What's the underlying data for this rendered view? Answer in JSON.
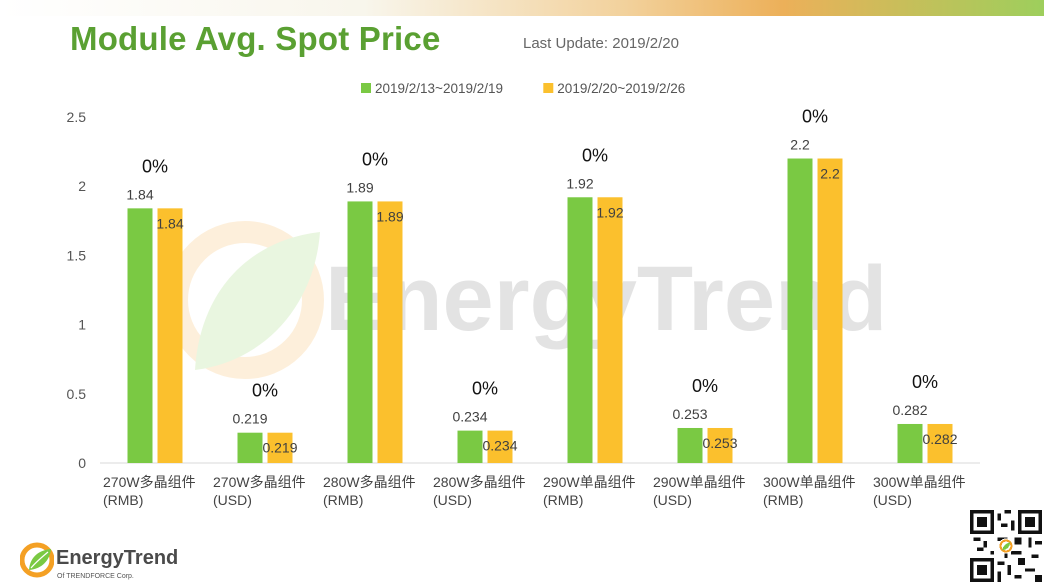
{
  "header": {
    "title": "Module Avg. Spot Price",
    "last_update": "Last Update: 2019/2/20"
  },
  "watermark": {
    "text": "EnergyTrend"
  },
  "footer": {
    "logo_name": "EnergyTrend",
    "logo_sub": "Of TRENDFORCE Corp."
  },
  "colors": {
    "series1": "#7ac943",
    "series2": "#fbc02d",
    "title": "#5aa032"
  },
  "chart_data": {
    "type": "bar",
    "categories": [
      [
        "270W多晶组件",
        "(RMB)"
      ],
      [
        "270W多晶组件",
        "(USD)"
      ],
      [
        "280W多晶组件",
        "(RMB)"
      ],
      [
        "280W多晶组件",
        "(USD)"
      ],
      [
        "290W单晶组件",
        "(RMB)"
      ],
      [
        "290W单晶组件",
        "(USD)"
      ],
      [
        "300W单晶组件",
        "(RMB)"
      ],
      [
        "300W单晶组件",
        "(USD)"
      ]
    ],
    "series": [
      {
        "name": "2019/2/13~2019/2/19",
        "values": [
          1.84,
          0.219,
          1.89,
          0.234,
          1.92,
          0.253,
          2.2,
          0.282
        ]
      },
      {
        "name": "2019/2/20~2019/2/26",
        "values": [
          1.84,
          0.219,
          1.89,
          0.234,
          1.92,
          0.253,
          2.2,
          0.282
        ]
      }
    ],
    "change_labels": [
      "0%",
      "0%",
      "0%",
      "0%",
      "0%",
      "0%",
      "0%",
      "0%"
    ],
    "ylim": [
      0,
      2.5
    ],
    "yticks": [
      0,
      0.5,
      1,
      1.5,
      2,
      2.5
    ],
    "grid": false,
    "legend": "top-center",
    "title": "",
    "xlabel": "",
    "ylabel": ""
  }
}
